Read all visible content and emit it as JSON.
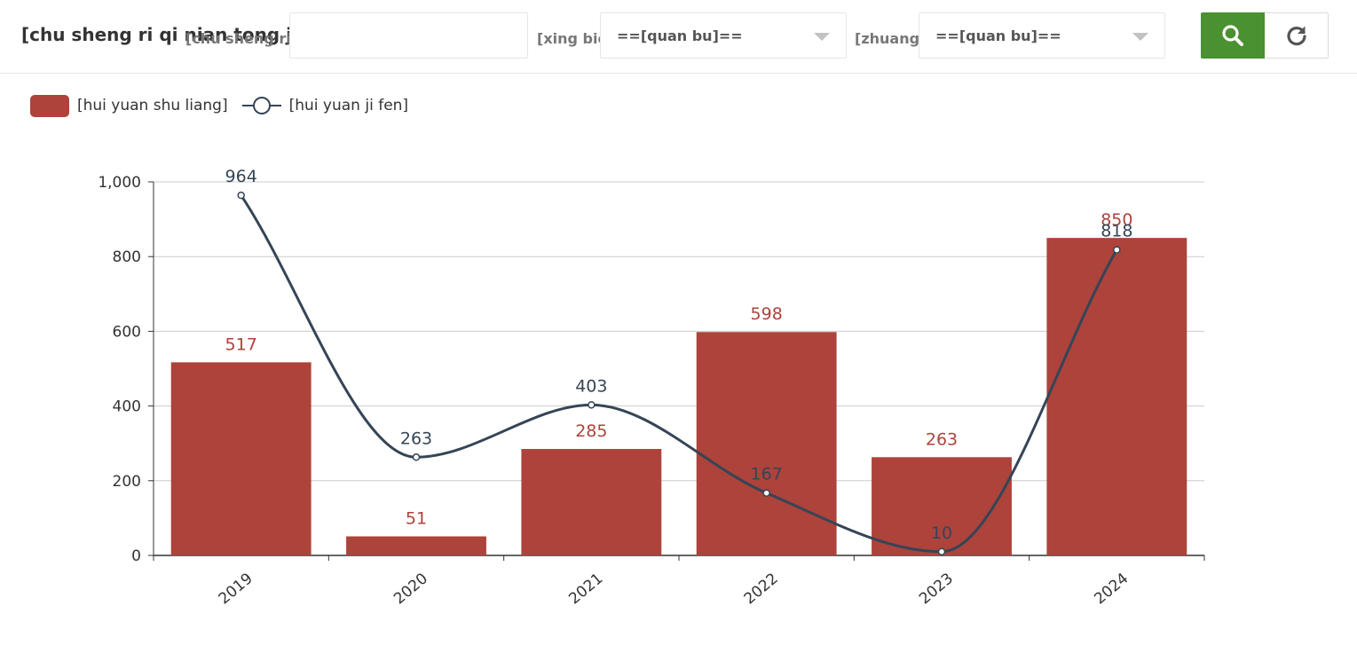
{
  "toolbar": {
    "title": "[chu sheng ri qi nian tong ji]",
    "birth_date_label": "[chu sheng ri qi]：",
    "birth_date_value": "",
    "gender_label": "[xing bie]：",
    "gender_value": "==[quan bu]==",
    "status_label": "[zhuang tai]：",
    "status_value": "==[quan bu]==",
    "search_icon": "search-icon",
    "refresh_icon": "refresh-icon"
  },
  "colors": {
    "bar": "#ad433b",
    "line": "#354556",
    "search_button": "#4a9131",
    "axis": "#333333",
    "grid": "#cccccc"
  },
  "legend": {
    "bar_label": "[hui yuan shu liang]",
    "line_label": "[hui yuan ji fen]",
    "position": "top-left"
  },
  "chart_data": {
    "type": "bar",
    "categories": [
      "2019",
      "2020",
      "2021",
      "2022",
      "2023",
      "2024"
    ],
    "series": [
      {
        "name": "[hui yuan shu liang]",
        "type": "bar",
        "values": [
          517,
          51,
          285,
          598,
          263,
          850
        ]
      },
      {
        "name": "[hui yuan ji fen]",
        "type": "line",
        "smooth": true,
        "values": [
          964,
          263,
          403,
          167,
          10,
          818
        ]
      }
    ],
    "yticks": [
      "0",
      "200",
      "400",
      "600",
      "800",
      "1,000"
    ],
    "ylim": [
      0,
      1000
    ],
    "grid": true,
    "title": "",
    "xlabel": "",
    "ylabel": ""
  }
}
